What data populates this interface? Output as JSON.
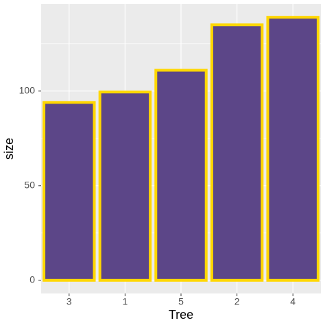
{
  "chart_data": {
    "type": "bar",
    "x_label": "Tree",
    "y_label": "size",
    "categories": [
      "3",
      "1",
      "5",
      "2",
      "4"
    ],
    "values": [
      94,
      99.5,
      111,
      135,
      139
    ],
    "color": "#5c4688",
    "edge_color": "#ffd700",
    "ylim": [
      -6.95,
      145.95
    ],
    "yticks": [
      0,
      50,
      100
    ],
    "grid": true
  }
}
